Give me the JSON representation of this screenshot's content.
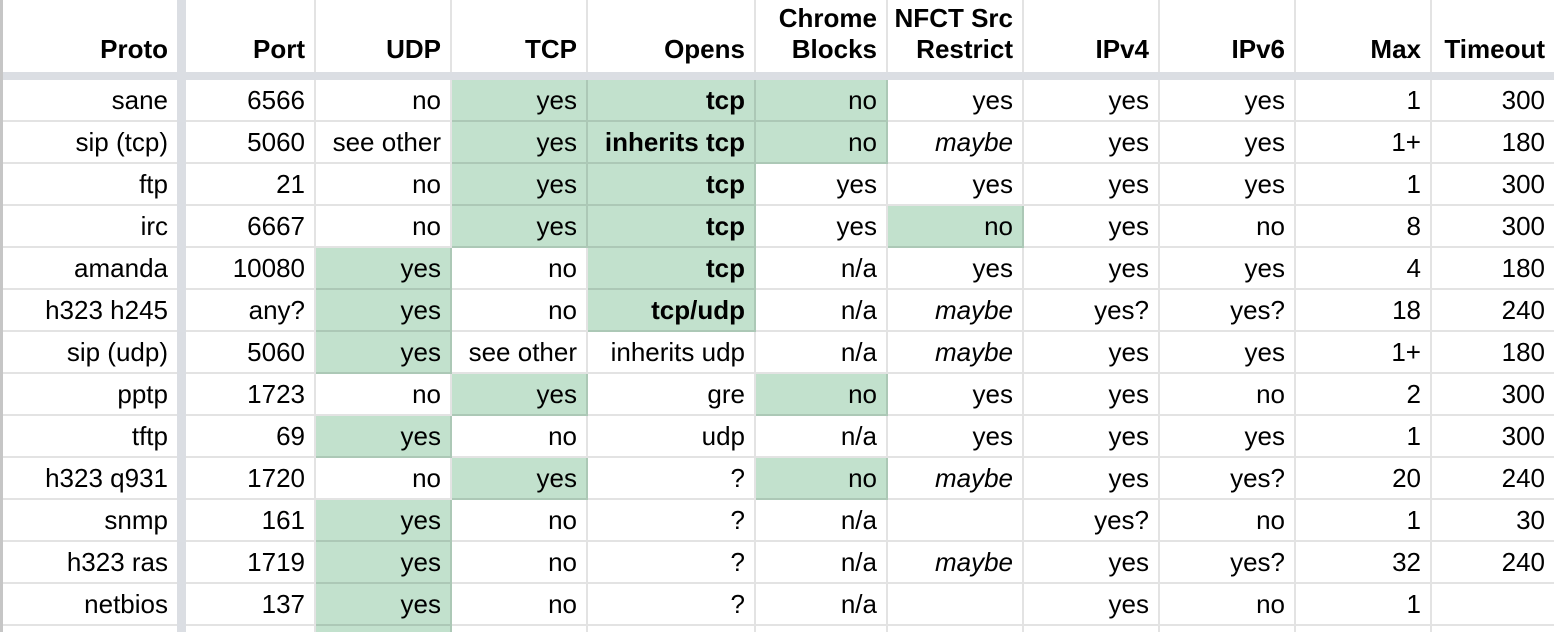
{
  "colors": {
    "highlight": "#c2e1cd",
    "pane_divider": "#dbdee3",
    "left_edge": "#c6c6c6"
  },
  "header": {
    "labels": [
      "Proto",
      "Port",
      "UDP",
      "TCP",
      "Opens",
      "Chrome Blocks",
      "NFCT Src Restrict",
      "IPv4",
      "IPv6",
      "Max",
      "Timeout"
    ]
  },
  "rows": [
    {
      "cells": [
        {
          "v": "sane"
        },
        {
          "v": "6566"
        },
        {
          "v": "no"
        },
        {
          "v": "yes",
          "hl": true
        },
        {
          "v": "tcp",
          "hl": true,
          "b": true
        },
        {
          "v": "no",
          "hl": true
        },
        {
          "v": "yes"
        },
        {
          "v": "yes"
        },
        {
          "v": "yes"
        },
        {
          "v": "1"
        },
        {
          "v": "300"
        }
      ]
    },
    {
      "cells": [
        {
          "v": "sip (tcp)"
        },
        {
          "v": "5060"
        },
        {
          "v": "see other"
        },
        {
          "v": "yes",
          "hl": true
        },
        {
          "v": "inherits tcp",
          "hl": true,
          "b": true
        },
        {
          "v": "no",
          "hl": true
        },
        {
          "v": "maybe",
          "i": true
        },
        {
          "v": "yes"
        },
        {
          "v": "yes"
        },
        {
          "v": "1+"
        },
        {
          "v": "180"
        }
      ]
    },
    {
      "cells": [
        {
          "v": "ftp"
        },
        {
          "v": "21"
        },
        {
          "v": "no"
        },
        {
          "v": "yes",
          "hl": true
        },
        {
          "v": "tcp",
          "hl": true,
          "b": true
        },
        {
          "v": "yes"
        },
        {
          "v": "yes"
        },
        {
          "v": "yes"
        },
        {
          "v": "yes"
        },
        {
          "v": "1"
        },
        {
          "v": "300"
        }
      ]
    },
    {
      "cells": [
        {
          "v": "irc"
        },
        {
          "v": "6667"
        },
        {
          "v": "no"
        },
        {
          "v": "yes",
          "hl": true
        },
        {
          "v": "tcp",
          "hl": true,
          "b": true
        },
        {
          "v": "yes"
        },
        {
          "v": "no",
          "hl": true
        },
        {
          "v": "yes"
        },
        {
          "v": "no"
        },
        {
          "v": "8"
        },
        {
          "v": "300"
        }
      ]
    },
    {
      "cells": [
        {
          "v": "amanda"
        },
        {
          "v": "10080"
        },
        {
          "v": "yes",
          "hl": true
        },
        {
          "v": "no"
        },
        {
          "v": "tcp",
          "hl": true,
          "b": true
        },
        {
          "v": "n/a"
        },
        {
          "v": "yes"
        },
        {
          "v": "yes"
        },
        {
          "v": "yes"
        },
        {
          "v": "4"
        },
        {
          "v": "180"
        }
      ]
    },
    {
      "cells": [
        {
          "v": "h323 h245"
        },
        {
          "v": "any?"
        },
        {
          "v": "yes",
          "hl": true
        },
        {
          "v": "no"
        },
        {
          "v": "tcp/udp",
          "hl": true,
          "b": true
        },
        {
          "v": "n/a"
        },
        {
          "v": "maybe",
          "i": true
        },
        {
          "v": "yes?"
        },
        {
          "v": "yes?"
        },
        {
          "v": "18"
        },
        {
          "v": "240"
        }
      ]
    },
    {
      "cells": [
        {
          "v": "sip (udp)"
        },
        {
          "v": "5060"
        },
        {
          "v": "yes",
          "hl": true
        },
        {
          "v": "see other"
        },
        {
          "v": "inherits udp"
        },
        {
          "v": "n/a"
        },
        {
          "v": "maybe",
          "i": true
        },
        {
          "v": "yes"
        },
        {
          "v": "yes"
        },
        {
          "v": "1+"
        },
        {
          "v": "180"
        }
      ]
    },
    {
      "cells": [
        {
          "v": "pptp"
        },
        {
          "v": "1723"
        },
        {
          "v": "no"
        },
        {
          "v": "yes",
          "hl": true
        },
        {
          "v": "gre"
        },
        {
          "v": "no",
          "hl": true
        },
        {
          "v": "yes"
        },
        {
          "v": "yes"
        },
        {
          "v": "no"
        },
        {
          "v": "2"
        },
        {
          "v": "300"
        }
      ]
    },
    {
      "cells": [
        {
          "v": "tftp"
        },
        {
          "v": "69"
        },
        {
          "v": "yes",
          "hl": true
        },
        {
          "v": "no"
        },
        {
          "v": "udp"
        },
        {
          "v": "n/a"
        },
        {
          "v": "yes"
        },
        {
          "v": "yes"
        },
        {
          "v": "yes"
        },
        {
          "v": "1"
        },
        {
          "v": "300"
        }
      ]
    },
    {
      "cells": [
        {
          "v": "h323 q931"
        },
        {
          "v": "1720"
        },
        {
          "v": "no"
        },
        {
          "v": "yes",
          "hl": true
        },
        {
          "v": "?"
        },
        {
          "v": "no",
          "hl": true
        },
        {
          "v": "maybe",
          "i": true
        },
        {
          "v": "yes"
        },
        {
          "v": "yes?"
        },
        {
          "v": "20"
        },
        {
          "v": "240"
        }
      ]
    },
    {
      "cells": [
        {
          "v": "snmp"
        },
        {
          "v": "161"
        },
        {
          "v": "yes",
          "hl": true
        },
        {
          "v": "no"
        },
        {
          "v": "?"
        },
        {
          "v": "n/a"
        },
        {
          "v": ""
        },
        {
          "v": "yes?"
        },
        {
          "v": "no"
        },
        {
          "v": "1"
        },
        {
          "v": "30"
        }
      ]
    },
    {
      "cells": [
        {
          "v": "h323 ras"
        },
        {
          "v": "1719"
        },
        {
          "v": "yes",
          "hl": true
        },
        {
          "v": "no"
        },
        {
          "v": "?"
        },
        {
          "v": "n/a"
        },
        {
          "v": "maybe",
          "i": true
        },
        {
          "v": "yes"
        },
        {
          "v": "yes?"
        },
        {
          "v": "32"
        },
        {
          "v": "240"
        }
      ]
    },
    {
      "cells": [
        {
          "v": "netbios"
        },
        {
          "v": "137"
        },
        {
          "v": "yes",
          "hl": true
        },
        {
          "v": "no"
        },
        {
          "v": "?"
        },
        {
          "v": "n/a"
        },
        {
          "v": ""
        },
        {
          "v": "yes"
        },
        {
          "v": "no"
        },
        {
          "v": "1"
        },
        {
          "v": ""
        }
      ]
    }
  ],
  "partial_row": {
    "cells": [
      {
        "v": ""
      },
      {
        "v": ""
      },
      {
        "v": "",
        "hl": true
      },
      {
        "v": ""
      },
      {
        "v": ""
      },
      {
        "v": ""
      },
      {
        "v": ""
      },
      {
        "v": ""
      },
      {
        "v": ""
      },
      {
        "v": ""
      },
      {
        "v": ""
      }
    ]
  }
}
